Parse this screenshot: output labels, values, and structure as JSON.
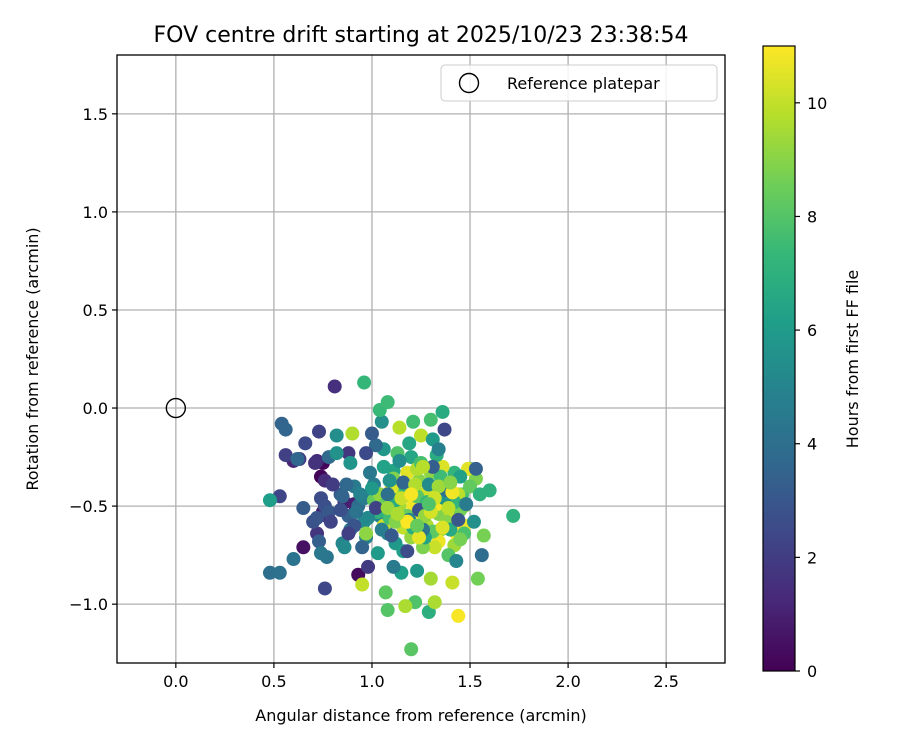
{
  "chart_data": {
    "type": "scatter",
    "title": "FOV centre drift starting at 2025/10/23 23:38:54",
    "xlabel": "Angular distance from reference (arcmin)",
    "ylabel": "Rotation from reference (arcmin)",
    "xlim": [
      -0.3,
      2.8
    ],
    "ylim": [
      -1.3,
      1.8
    ],
    "xticks": [
      0.0,
      0.5,
      1.0,
      1.5,
      2.0,
      2.5
    ],
    "xtick_labels": [
      "0.0",
      "0.5",
      "1.0",
      "1.5",
      "2.0",
      "2.5"
    ],
    "yticks": [
      -1.0,
      -0.5,
      0.0,
      0.5,
      1.0,
      1.5
    ],
    "ytick_labels": [
      "−1.0",
      "−0.5",
      "0.0",
      "0.5",
      "1.0",
      "1.5"
    ],
    "grid": true,
    "legend": {
      "position": "top-right",
      "entries": [
        {
          "label": "Reference platepar",
          "marker": "open-circle"
        }
      ]
    },
    "reference_point": {
      "x": 0.0,
      "y": 0.0
    },
    "colorbar": {
      "label": "Hours from first FF file",
      "range": [
        0,
        11
      ],
      "ticks": [
        0,
        2,
        4,
        6,
        8,
        10
      ],
      "tick_labels": [
        "0",
        "2",
        "4",
        "6",
        "8",
        "10"
      ],
      "colormap": "viridis",
      "colors": [
        "#440154",
        "#482878",
        "#3e4989",
        "#31688e",
        "#26828e",
        "#1f9e89",
        "#35b779",
        "#6ece58",
        "#b5de2b",
        "#fde725"
      ]
    },
    "points": [
      [
        0.74,
        -0.35,
        0.1
      ],
      [
        0.75,
        -0.28,
        0.2
      ],
      [
        0.93,
        -0.85,
        0.3
      ],
      [
        0.65,
        -0.71,
        0.5
      ],
      [
        0.75,
        -0.53,
        0.6
      ],
      [
        0.77,
        -0.55,
        0.8
      ],
      [
        0.86,
        -0.48,
        0.9
      ],
      [
        0.91,
        -0.49,
        1.0
      ],
      [
        0.6,
        -0.27,
        1.2
      ],
      [
        0.72,
        -0.27,
        1.3
      ],
      [
        0.76,
        -0.37,
        1.4
      ],
      [
        0.81,
        0.11,
        1.5
      ],
      [
        0.71,
        -0.28,
        1.6
      ],
      [
        0.72,
        -0.64,
        1.7
      ],
      [
        0.88,
        -0.23,
        1.8
      ],
      [
        0.98,
        -0.81,
        1.9
      ],
      [
        0.63,
        -0.26,
        2.0
      ],
      [
        0.56,
        -0.24,
        2.1
      ],
      [
        0.73,
        -0.12,
        2.2
      ],
      [
        0.53,
        -0.45,
        2.3
      ],
      [
        0.76,
        -0.92,
        2.4
      ],
      [
        0.66,
        -0.18,
        2.5
      ],
      [
        0.74,
        -0.46,
        2.6
      ],
      [
        0.76,
        -0.5,
        2.7
      ],
      [
        0.7,
        -0.58,
        2.8
      ],
      [
        0.72,
        -0.56,
        2.9
      ],
      [
        0.78,
        -0.53,
        3.0
      ],
      [
        0.84,
        -0.44,
        3.1
      ],
      [
        0.65,
        -0.51,
        3.2
      ],
      [
        0.73,
        -0.68,
        3.3
      ],
      [
        0.88,
        -0.55,
        3.4
      ],
      [
        0.85,
        -0.45,
        3.5
      ],
      [
        0.54,
        -0.08,
        3.5
      ],
      [
        0.56,
        -0.11,
        3.6
      ],
      [
        0.62,
        -0.26,
        3.7
      ],
      [
        0.78,
        -0.25,
        3.8
      ],
      [
        0.93,
        -0.5,
        3.9
      ],
      [
        0.48,
        -0.84,
        4.0
      ],
      [
        0.53,
        -0.84,
        4.1
      ],
      [
        0.6,
        -0.77,
        4.2
      ],
      [
        0.77,
        -0.76,
        4.3
      ],
      [
        0.74,
        -0.74,
        4.4
      ],
      [
        0.89,
        -0.62,
        4.4
      ],
      [
        0.91,
        -0.4,
        4.5
      ],
      [
        0.96,
        -0.46,
        4.6
      ],
      [
        1.01,
        -0.39,
        4.7
      ],
      [
        1.04,
        -0.55,
        4.8
      ],
      [
        0.97,
        -0.66,
        4.9
      ],
      [
        1.08,
        -0.64,
        5.0
      ],
      [
        0.85,
        -0.69,
        5.1
      ],
      [
        0.86,
        -0.71,
        5.2
      ],
      [
        0.96,
        -0.58,
        5.3
      ],
      [
        0.82,
        -0.14,
        5.4
      ],
      [
        1.05,
        -0.07,
        5.5
      ],
      [
        0.82,
        -0.23,
        5.6
      ],
      [
        0.89,
        -0.28,
        5.7
      ],
      [
        1.06,
        -0.21,
        5.8
      ],
      [
        1.12,
        -0.69,
        5.9
      ],
      [
        1.03,
        -0.74,
        6.0
      ],
      [
        0.48,
        -0.47,
        6.1
      ],
      [
        1.15,
        -0.84,
        6.2
      ],
      [
        1.15,
        -0.58,
        6.3
      ],
      [
        1.11,
        -0.32,
        6.4
      ],
      [
        1.2,
        -0.25,
        6.5
      ],
      [
        1.26,
        -0.51,
        6.6
      ],
      [
        1.36,
        -0.02,
        6.7
      ],
      [
        1.5,
        -0.31,
        6.8
      ],
      [
        1.29,
        -1.04,
        6.9
      ],
      [
        1.6,
        -0.42,
        7.0
      ],
      [
        1.72,
        -0.55,
        7.1
      ],
      [
        1.42,
        -0.33,
        7.2
      ],
      [
        0.96,
        0.13,
        7.3
      ],
      [
        1.04,
        -0.01,
        7.4
      ],
      [
        1.08,
        0.03,
        7.5
      ],
      [
        1.21,
        -0.07,
        7.6
      ],
      [
        1.3,
        -0.06,
        7.7
      ],
      [
        1.46,
        -0.44,
        7.8
      ],
      [
        1.22,
        -0.99,
        7.9
      ],
      [
        1.08,
        -1.03,
        8.0
      ],
      [
        1.2,
        -1.23,
        8.1
      ],
      [
        1.07,
        -0.94,
        8.2
      ],
      [
        1.14,
        -0.43,
        8.3
      ],
      [
        1.01,
        -0.47,
        8.4
      ],
      [
        1.22,
        -0.42,
        8.5
      ],
      [
        1.54,
        -0.87,
        8.6
      ],
      [
        1.57,
        -0.65,
        8.7
      ],
      [
        1.53,
        -0.36,
        8.8
      ],
      [
        1.34,
        -0.54,
        8.9
      ],
      [
        1.24,
        -0.37,
        9.0
      ],
      [
        0.97,
        -0.64,
        9.1
      ],
      [
        1.04,
        -0.44,
        9.2
      ],
      [
        1.35,
        -0.62,
        9.3
      ],
      [
        1.11,
        -0.52,
        9.4
      ],
      [
        1.3,
        -0.87,
        9.5
      ],
      [
        1.17,
        -1.01,
        9.6
      ],
      [
        1.32,
        -0.99,
        9.6
      ],
      [
        0.9,
        -0.13,
        9.7
      ],
      [
        1.14,
        -0.1,
        9.8
      ],
      [
        1.25,
        -0.14,
        9.9
      ],
      [
        0.95,
        -0.9,
        10.0
      ],
      [
        1.41,
        -0.89,
        10.1
      ],
      [
        1.06,
        -0.6,
        10.2
      ],
      [
        1.19,
        -0.45,
        10.3
      ],
      [
        1.36,
        -0.3,
        10.4
      ],
      [
        1.49,
        -0.31,
        10.5
      ],
      [
        1.29,
        -0.41,
        10.6
      ],
      [
        1.34,
        -0.68,
        10.7
      ],
      [
        1.47,
        -0.6,
        10.8
      ],
      [
        1.44,
        -1.06,
        10.9
      ],
      [
        1.43,
        -0.64,
        11.0
      ],
      [
        1.33,
        -0.49,
        10.9
      ],
      [
        1.25,
        -0.56,
        10.7
      ],
      [
        1.21,
        -0.5,
        10.8
      ],
      [
        1.38,
        -0.46,
        10.6
      ],
      [
        1.18,
        -0.33,
        10.5
      ],
      [
        1.1,
        -0.41,
        10.4
      ],
      [
        1.4,
        -0.56,
        10.3
      ],
      [
        1.27,
        -0.44,
        10.2
      ],
      [
        1.32,
        -0.71,
        10.1
      ],
      [
        1.16,
        -0.61,
        10.0
      ],
      [
        1.44,
        -0.44,
        9.9
      ],
      [
        1.36,
        -0.38,
        9.8
      ],
      [
        1.23,
        -0.31,
        9.7
      ],
      [
        1.28,
        -0.6,
        9.6
      ],
      [
        1.14,
        -0.5,
        9.5
      ],
      [
        1.42,
        -0.7,
        9.4
      ],
      [
        1.47,
        -0.5,
        9.3
      ],
      [
        1.2,
        -0.66,
        9.2
      ],
      [
        1.3,
        -0.33,
        9.1
      ],
      [
        1.38,
        -0.58,
        9.0
      ],
      [
        1.11,
        -0.36,
        8.9
      ],
      [
        1.26,
        -0.71,
        8.8
      ],
      [
        1.45,
        -0.52,
        8.7
      ],
      [
        1.35,
        -0.42,
        8.6
      ],
      [
        1.18,
        -0.55,
        8.5
      ],
      [
        1.07,
        -0.49,
        8.4
      ],
      [
        1.5,
        -0.4,
        8.3
      ],
      [
        1.31,
        -0.63,
        8.2
      ],
      [
        1.23,
        -0.45,
        8.1
      ],
      [
        1.39,
        -0.75,
        8.0
      ],
      [
        1.13,
        -0.23,
        7.9
      ],
      [
        1.47,
        -0.64,
        7.8
      ],
      [
        1.25,
        -0.28,
        7.7
      ],
      [
        1.09,
        -0.56,
        7.6
      ],
      [
        1.35,
        -0.35,
        7.5
      ],
      [
        1.28,
        -0.48,
        7.4
      ],
      [
        1.17,
        -0.4,
        7.3
      ],
      [
        1.42,
        -0.48,
        7.2
      ],
      [
        1.03,
        -0.53,
        7.1
      ],
      [
        1.55,
        -0.44,
        7.0
      ],
      [
        1.21,
        -0.61,
        6.9
      ],
      [
        1.33,
        -0.24,
        6.8
      ],
      [
        1.12,
        -0.47,
        6.7
      ],
      [
        1.4,
        -0.62,
        6.6
      ],
      [
        1.19,
        -0.18,
        6.5
      ],
      [
        1.27,
        -0.66,
        6.4
      ],
      [
        1.06,
        -0.3,
        6.3
      ],
      [
        1.45,
        -0.35,
        6.2
      ],
      [
        1.16,
        -0.73,
        6.1
      ],
      [
        1.31,
        -0.16,
        6.0
      ],
      [
        1.0,
        -0.41,
        5.9
      ],
      [
        1.23,
        -0.83,
        5.8
      ],
      [
        1.37,
        -0.46,
        5.7
      ],
      [
        1.09,
        -0.37,
        5.6
      ],
      [
        1.52,
        -0.58,
        5.5
      ],
      [
        1.14,
        -0.27,
        5.4
      ],
      [
        1.29,
        -0.39,
        5.3
      ],
      [
        0.98,
        -0.56,
        5.2
      ],
      [
        1.43,
        -0.78,
        5.1
      ],
      [
        1.19,
        -0.57,
        5.0
      ],
      [
        0.94,
        -0.44,
        4.9
      ],
      [
        1.34,
        -0.21,
        4.8
      ],
      [
        1.05,
        -0.62,
        4.7
      ],
      [
        1.48,
        -0.49,
        4.6
      ],
      [
        1.11,
        -0.81,
        4.5
      ],
      [
        0.99,
        -0.33,
        4.4
      ],
      [
        1.26,
        -0.62,
        4.3
      ],
      [
        0.92,
        -0.53,
        4.2
      ],
      [
        1.38,
        -0.42,
        4.1
      ],
      [
        1.08,
        -0.44,
        4.0
      ],
      [
        1.56,
        -0.75,
        3.9
      ],
      [
        1.02,
        -0.19,
        3.8
      ],
      [
        0.87,
        -0.39,
        3.7
      ],
      [
        1.16,
        -0.38,
        3.6
      ],
      [
        0.95,
        -0.71,
        3.5
      ],
      [
        1.53,
        -0.31,
        3.4
      ],
      [
        1.31,
        -0.3,
        3.3
      ],
      [
        1.0,
        -0.13,
        3.2
      ],
      [
        1.1,
        -0.65,
        3.1
      ],
      [
        1.44,
        -0.57,
        3.0
      ],
      [
        0.91,
        -0.6,
        2.9
      ],
      [
        1.24,
        -0.52,
        2.8
      ],
      [
        0.84,
        -0.52,
        2.7
      ],
      [
        1.18,
        -0.73,
        2.6
      ],
      [
        0.97,
        -0.23,
        2.5
      ],
      [
        1.37,
        -0.11,
        2.4
      ],
      [
        0.79,
        -0.58,
        2.3
      ],
      [
        1.02,
        -0.51,
        2.2
      ],
      [
        0.88,
        -0.64,
        2.1
      ],
      [
        0.8,
        -0.39,
        2.0
      ],
      [
        1.12,
        -0.58,
        8.9
      ],
      [
        1.27,
        -0.55,
        9.2
      ],
      [
        1.34,
        -0.4,
        9.4
      ],
      [
        1.22,
        -0.39,
        9.7
      ],
      [
        1.39,
        -0.51,
        9.9
      ],
      [
        1.15,
        -0.46,
        10.1
      ],
      [
        1.3,
        -0.53,
        10.3
      ],
      [
        1.24,
        -0.66,
        10.6
      ],
      [
        1.41,
        -0.43,
        10.8
      ],
      [
        1.18,
        -0.58,
        11.0
      ],
      [
        1.36,
        -0.61,
        10.4
      ],
      [
        1.26,
        -0.3,
        9.8
      ],
      [
        1.08,
        -0.51,
        9.3
      ],
      [
        1.45,
        -0.67,
        8.7
      ],
      [
        1.2,
        -0.44,
        10.9
      ],
      [
        1.32,
        -0.46,
        10.2
      ],
      [
        1.13,
        -0.54,
        9.6
      ],
      [
        1.4,
        -0.38,
        9.0
      ],
      [
        1.23,
        -0.6,
        8.4
      ],
      [
        1.29,
        -0.49,
        7.9
      ]
    ]
  }
}
